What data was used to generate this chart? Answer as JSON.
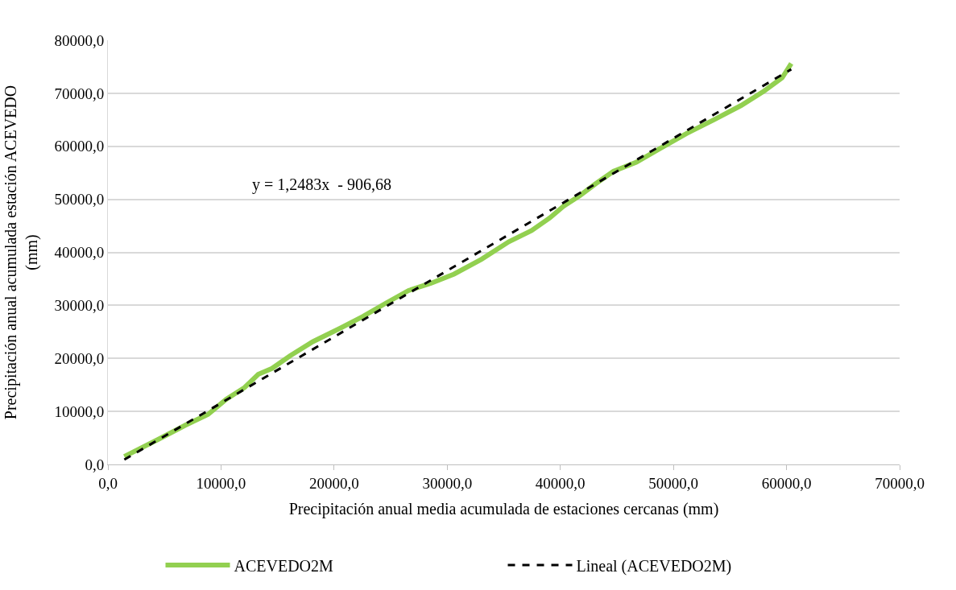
{
  "chart_data": {
    "type": "line",
    "xlabel": "Precipitación anual media acumulada de estaciones cercanas (mm)",
    "ylabel": "Precipitación anual acumulada estación ACEVEDO\n(mm)",
    "annotations": [
      "y = 1,2483x  - 906,68"
    ],
    "series": [
      {
        "name": "ACEVEDO2M",
        "color": "#92d050",
        "line_style": "solid",
        "x": [
          1450,
          4430,
          6850,
          8860,
          10470,
          12080,
          13290,
          14500,
          16110,
          18120,
          20540,
          22550,
          24560,
          26580,
          28600,
          30610,
          33030,
          35450,
          37460,
          39070,
          40280,
          41730,
          43100,
          44710,
          46720,
          48740,
          51160,
          53570,
          55990,
          58000,
          59610,
          60420
        ],
        "values": [
          1500,
          4700,
          7400,
          9450,
          12300,
          14500,
          17000,
          18100,
          20500,
          23150,
          25700,
          27900,
          30400,
          32800,
          34200,
          35900,
          38700,
          42000,
          44100,
          46500,
          48700,
          50700,
          52900,
          55300,
          57000,
          59500,
          62400,
          65000,
          67700,
          70400,
          72900,
          75600
        ]
      },
      {
        "name": "Lineal (ACEVEDO2M)",
        "color": "#000000",
        "line_style": "dashed",
        "x": [
          1450,
          60420
        ],
        "values": [
          903,
          74516
        ]
      }
    ],
    "xlim": [
      0,
      70000
    ],
    "ylim": [
      0,
      80000
    ],
    "xticks": [
      {
        "value": 0,
        "label": "0,0"
      },
      {
        "value": 10000,
        "label": "10000,0"
      },
      {
        "value": 20000,
        "label": "20000,0"
      },
      {
        "value": 30000,
        "label": "30000,0"
      },
      {
        "value": 40000,
        "label": "40000,0"
      },
      {
        "value": 50000,
        "label": "50000,0"
      },
      {
        "value": 60000,
        "label": "60000,0"
      },
      {
        "value": 70000,
        "label": "70000,0"
      }
    ],
    "yticks": [
      {
        "value": 0,
        "label": "0,0"
      },
      {
        "value": 10000,
        "label": "10000,0"
      },
      {
        "value": 20000,
        "label": "20000,0"
      },
      {
        "value": 30000,
        "label": "30000,0"
      },
      {
        "value": 40000,
        "label": "40000,0"
      },
      {
        "value": 50000,
        "label": "50000,0"
      },
      {
        "value": 60000,
        "label": "60000,0"
      },
      {
        "value": 70000,
        "label": "70000,0"
      },
      {
        "value": 80000,
        "label": "80000,0"
      }
    ],
    "grid": "y",
    "legend": "bottom",
    "marker": "none"
  }
}
